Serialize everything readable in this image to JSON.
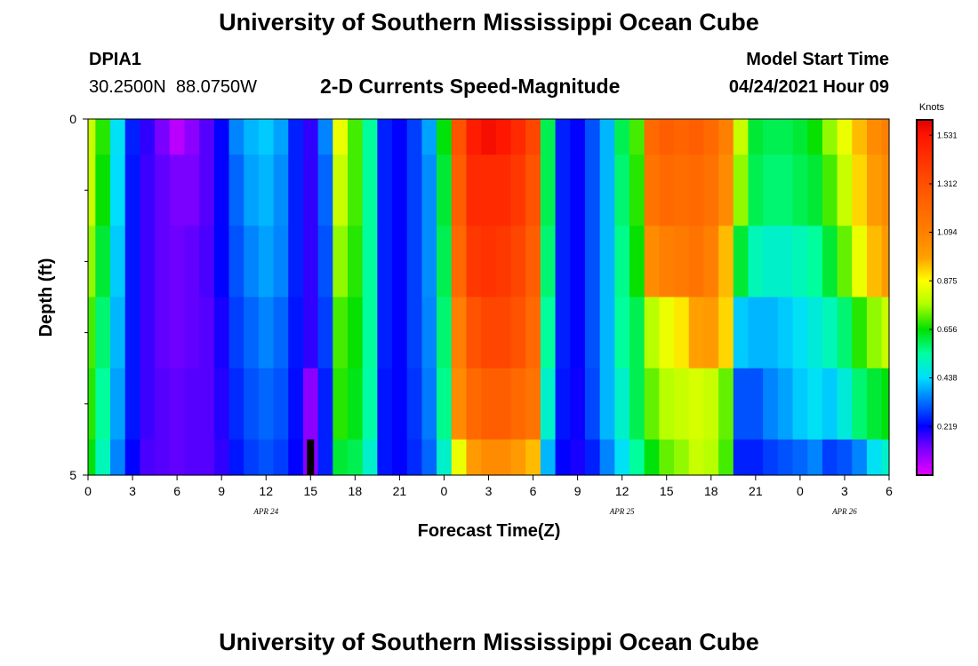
{
  "header": {
    "title": "University of Southern Mississippi Ocean Cube",
    "footer_title": "University of Southern Mississippi Ocean Cube",
    "station_id": "DPIA1",
    "station_coords": "30.2500N  88.0750W",
    "model_start_label": "Model Start Time",
    "model_start_value": "04/24/2021 Hour 09"
  },
  "chart_data": {
    "type": "heatmap",
    "title": "2-D Currents Speed-Magnitude",
    "xlabel": "Forecast Time(Z)",
    "ylabel": "Depth (ft)",
    "colorbar_label": "Knots",
    "x_tick_labels": [
      "0",
      "3",
      "6",
      "9",
      "12",
      "15",
      "18",
      "21",
      "0",
      "3",
      "6",
      "9",
      "12",
      "15",
      "18",
      "21",
      "0",
      "3",
      "6"
    ],
    "x_range_hours": [
      0,
      54
    ],
    "date_labels": [
      {
        "text": "APR 24",
        "hour": 12
      },
      {
        "text": "APR 25",
        "hour": 36
      },
      {
        "text": "APR 26",
        "hour": 51
      }
    ],
    "y_tick_labels": [
      "0",
      "5"
    ],
    "y_range_ft": [
      0,
      5
    ],
    "y_minor_ticks_ft": [
      1,
      2,
      3,
      4
    ],
    "depth_layers_ft": [
      [
        0,
        0.5
      ],
      [
        0.5,
        1.5
      ],
      [
        1.5,
        2.5
      ],
      [
        2.5,
        3.5
      ],
      [
        3.5,
        4.5
      ],
      [
        4.5,
        5
      ]
    ],
    "color_scale": {
      "min": 0.0,
      "max": 1.6,
      "ticks": [
        "1.531",
        "1.312",
        "1.094",
        "0.875",
        "0.656",
        "0.438",
        "0.219"
      ],
      "stops": [
        {
          "v": 0.0,
          "color": "#e600ff"
        },
        {
          "v": 0.12,
          "color": "#7a00ff"
        },
        {
          "v": 0.219,
          "color": "#0000ff"
        },
        {
          "v": 0.33,
          "color": "#0070ff"
        },
        {
          "v": 0.438,
          "color": "#00ddff"
        },
        {
          "v": 0.547,
          "color": "#00ffa0"
        },
        {
          "v": 0.656,
          "color": "#00e000"
        },
        {
          "v": 0.77,
          "color": "#b0ff00"
        },
        {
          "v": 0.875,
          "color": "#ffff00"
        },
        {
          "v": 0.98,
          "color": "#ffa000"
        },
        {
          "v": 1.094,
          "color": "#ff8000"
        },
        {
          "v": 1.312,
          "color": "#ff5000"
        },
        {
          "v": 1.531,
          "color": "#ff1400"
        },
        {
          "v": 1.6,
          "color": "#e00000"
        }
      ]
    },
    "speed_knots_by_layer": [
      [
        0.8,
        0.68,
        0.45,
        0.25,
        0.18,
        0.12,
        0.05,
        0.1,
        0.15,
        0.22,
        0.35,
        0.4,
        0.42,
        0.38,
        0.25,
        0.18,
        0.35,
        0.85,
        0.7,
        0.55,
        0.25,
        0.22,
        0.28,
        0.38,
        0.65,
        1.3,
        1.5,
        1.55,
        1.52,
        1.45,
        1.35,
        0.6,
        0.25,
        0.22,
        0.3,
        0.4,
        0.6,
        0.7,
        1.2,
        1.25,
        1.22,
        1.25,
        1.2,
        1.1,
        0.8,
        0.62,
        0.6,
        0.6,
        0.62,
        0.66,
        0.75,
        0.85,
        0.95,
        1.05,
        1.1
      ],
      [
        0.8,
        0.66,
        0.44,
        0.24,
        0.17,
        0.14,
        0.12,
        0.12,
        0.15,
        0.22,
        0.32,
        0.38,
        0.4,
        0.36,
        0.25,
        0.18,
        0.32,
        0.8,
        0.7,
        0.55,
        0.25,
        0.22,
        0.28,
        0.36,
        0.62,
        1.25,
        1.45,
        1.45,
        1.45,
        1.4,
        1.3,
        0.6,
        0.25,
        0.22,
        0.3,
        0.4,
        0.58,
        0.68,
        1.15,
        1.2,
        1.18,
        1.2,
        1.16,
        1.05,
        0.75,
        0.6,
        0.58,
        0.58,
        0.6,
        0.62,
        0.7,
        0.8,
        0.92,
        1.0,
        1.05
      ],
      [
        0.75,
        0.62,
        0.42,
        0.24,
        0.17,
        0.14,
        0.13,
        0.14,
        0.16,
        0.22,
        0.3,
        0.35,
        0.38,
        0.35,
        0.25,
        0.18,
        0.3,
        0.75,
        0.68,
        0.55,
        0.25,
        0.22,
        0.28,
        0.36,
        0.6,
        1.2,
        1.4,
        1.42,
        1.4,
        1.35,
        1.25,
        0.58,
        0.25,
        0.22,
        0.3,
        0.4,
        0.56,
        0.66,
        1.05,
        1.1,
        1.12,
        1.15,
        1.1,
        0.95,
        0.62,
        0.52,
        0.5,
        0.5,
        0.52,
        0.55,
        0.62,
        0.72,
        0.85,
        0.95,
        1.0
      ],
      [
        0.7,
        0.58,
        0.4,
        0.24,
        0.17,
        0.14,
        0.13,
        0.14,
        0.15,
        0.2,
        0.28,
        0.32,
        0.35,
        0.32,
        0.24,
        0.18,
        0.28,
        0.7,
        0.66,
        0.55,
        0.25,
        0.22,
        0.28,
        0.35,
        0.58,
        1.1,
        1.3,
        1.35,
        1.35,
        1.3,
        1.2,
        0.55,
        0.25,
        0.22,
        0.3,
        0.4,
        0.55,
        0.6,
        0.78,
        0.85,
        0.9,
        0.98,
        1.0,
        0.92,
        0.42,
        0.4,
        0.4,
        0.42,
        0.45,
        0.48,
        0.52,
        0.58,
        0.68,
        0.75,
        0.8
      ],
      [
        0.68,
        0.55,
        0.38,
        0.24,
        0.17,
        0.15,
        0.14,
        0.15,
        0.15,
        0.19,
        0.26,
        0.3,
        0.32,
        0.3,
        0.23,
        0.1,
        0.25,
        0.68,
        0.64,
        0.54,
        0.24,
        0.22,
        0.27,
        0.34,
        0.56,
        1.05,
        1.2,
        1.25,
        1.25,
        1.2,
        1.15,
        0.5,
        0.24,
        0.21,
        0.29,
        0.4,
        0.5,
        0.6,
        0.72,
        0.78,
        0.8,
        0.82,
        0.8,
        0.72,
        0.3,
        0.3,
        0.35,
        0.38,
        0.42,
        0.45,
        0.42,
        0.48,
        0.58,
        0.62,
        0.65
      ],
      [
        0.65,
        0.52,
        0.35,
        0.22,
        0.16,
        0.15,
        0.14,
        0.15,
        0.15,
        0.18,
        0.24,
        0.28,
        0.3,
        0.28,
        0.22,
        0.1,
        0.25,
        0.62,
        0.6,
        0.5,
        0.24,
        0.22,
        0.26,
        0.32,
        0.5,
        0.85,
        1.0,
        1.05,
        1.05,
        1.0,
        0.95,
        0.4,
        0.22,
        0.2,
        0.25,
        0.35,
        0.45,
        0.55,
        0.65,
        0.72,
        0.75,
        0.8,
        0.78,
        0.7,
        0.25,
        0.25,
        0.28,
        0.3,
        0.32,
        0.35,
        0.28,
        0.3,
        0.35,
        0.45,
        0.5
      ]
    ],
    "missing_mark": {
      "hour": 15,
      "depth_from_ft": 4.5,
      "depth_to_ft": 5.0
    }
  }
}
